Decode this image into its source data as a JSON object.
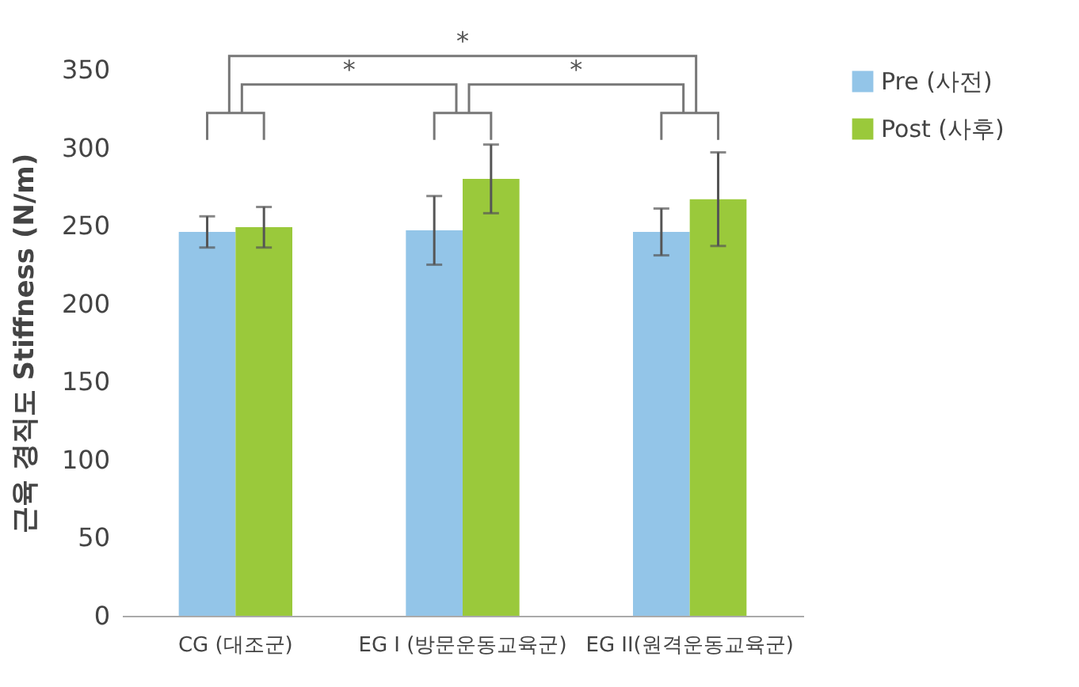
{
  "chart_data": {
    "type": "bar",
    "ylabel": "근육 경직도 Stiffness (N/m)",
    "categories": [
      "CG (대조군)",
      "EG I (방문운동교육군)",
      "EG II(원격운동교육군)"
    ],
    "series": [
      {
        "name": "Pre (사전)",
        "color": "#93c5e8",
        "values": [
          246,
          247,
          246
        ],
        "errors": [
          10,
          22,
          15
        ]
      },
      {
        "name": "Post (사후)",
        "color": "#9ac93b",
        "values": [
          249,
          280,
          267
        ],
        "errors": [
          13,
          22,
          30
        ]
      }
    ],
    "ylim": [
      0,
      350
    ],
    "yticks": [
      0,
      50,
      100,
      150,
      200,
      250,
      300,
      350
    ],
    "grid": false,
    "legend": "right",
    "annotations": [
      "*",
      "*",
      "*"
    ]
  }
}
